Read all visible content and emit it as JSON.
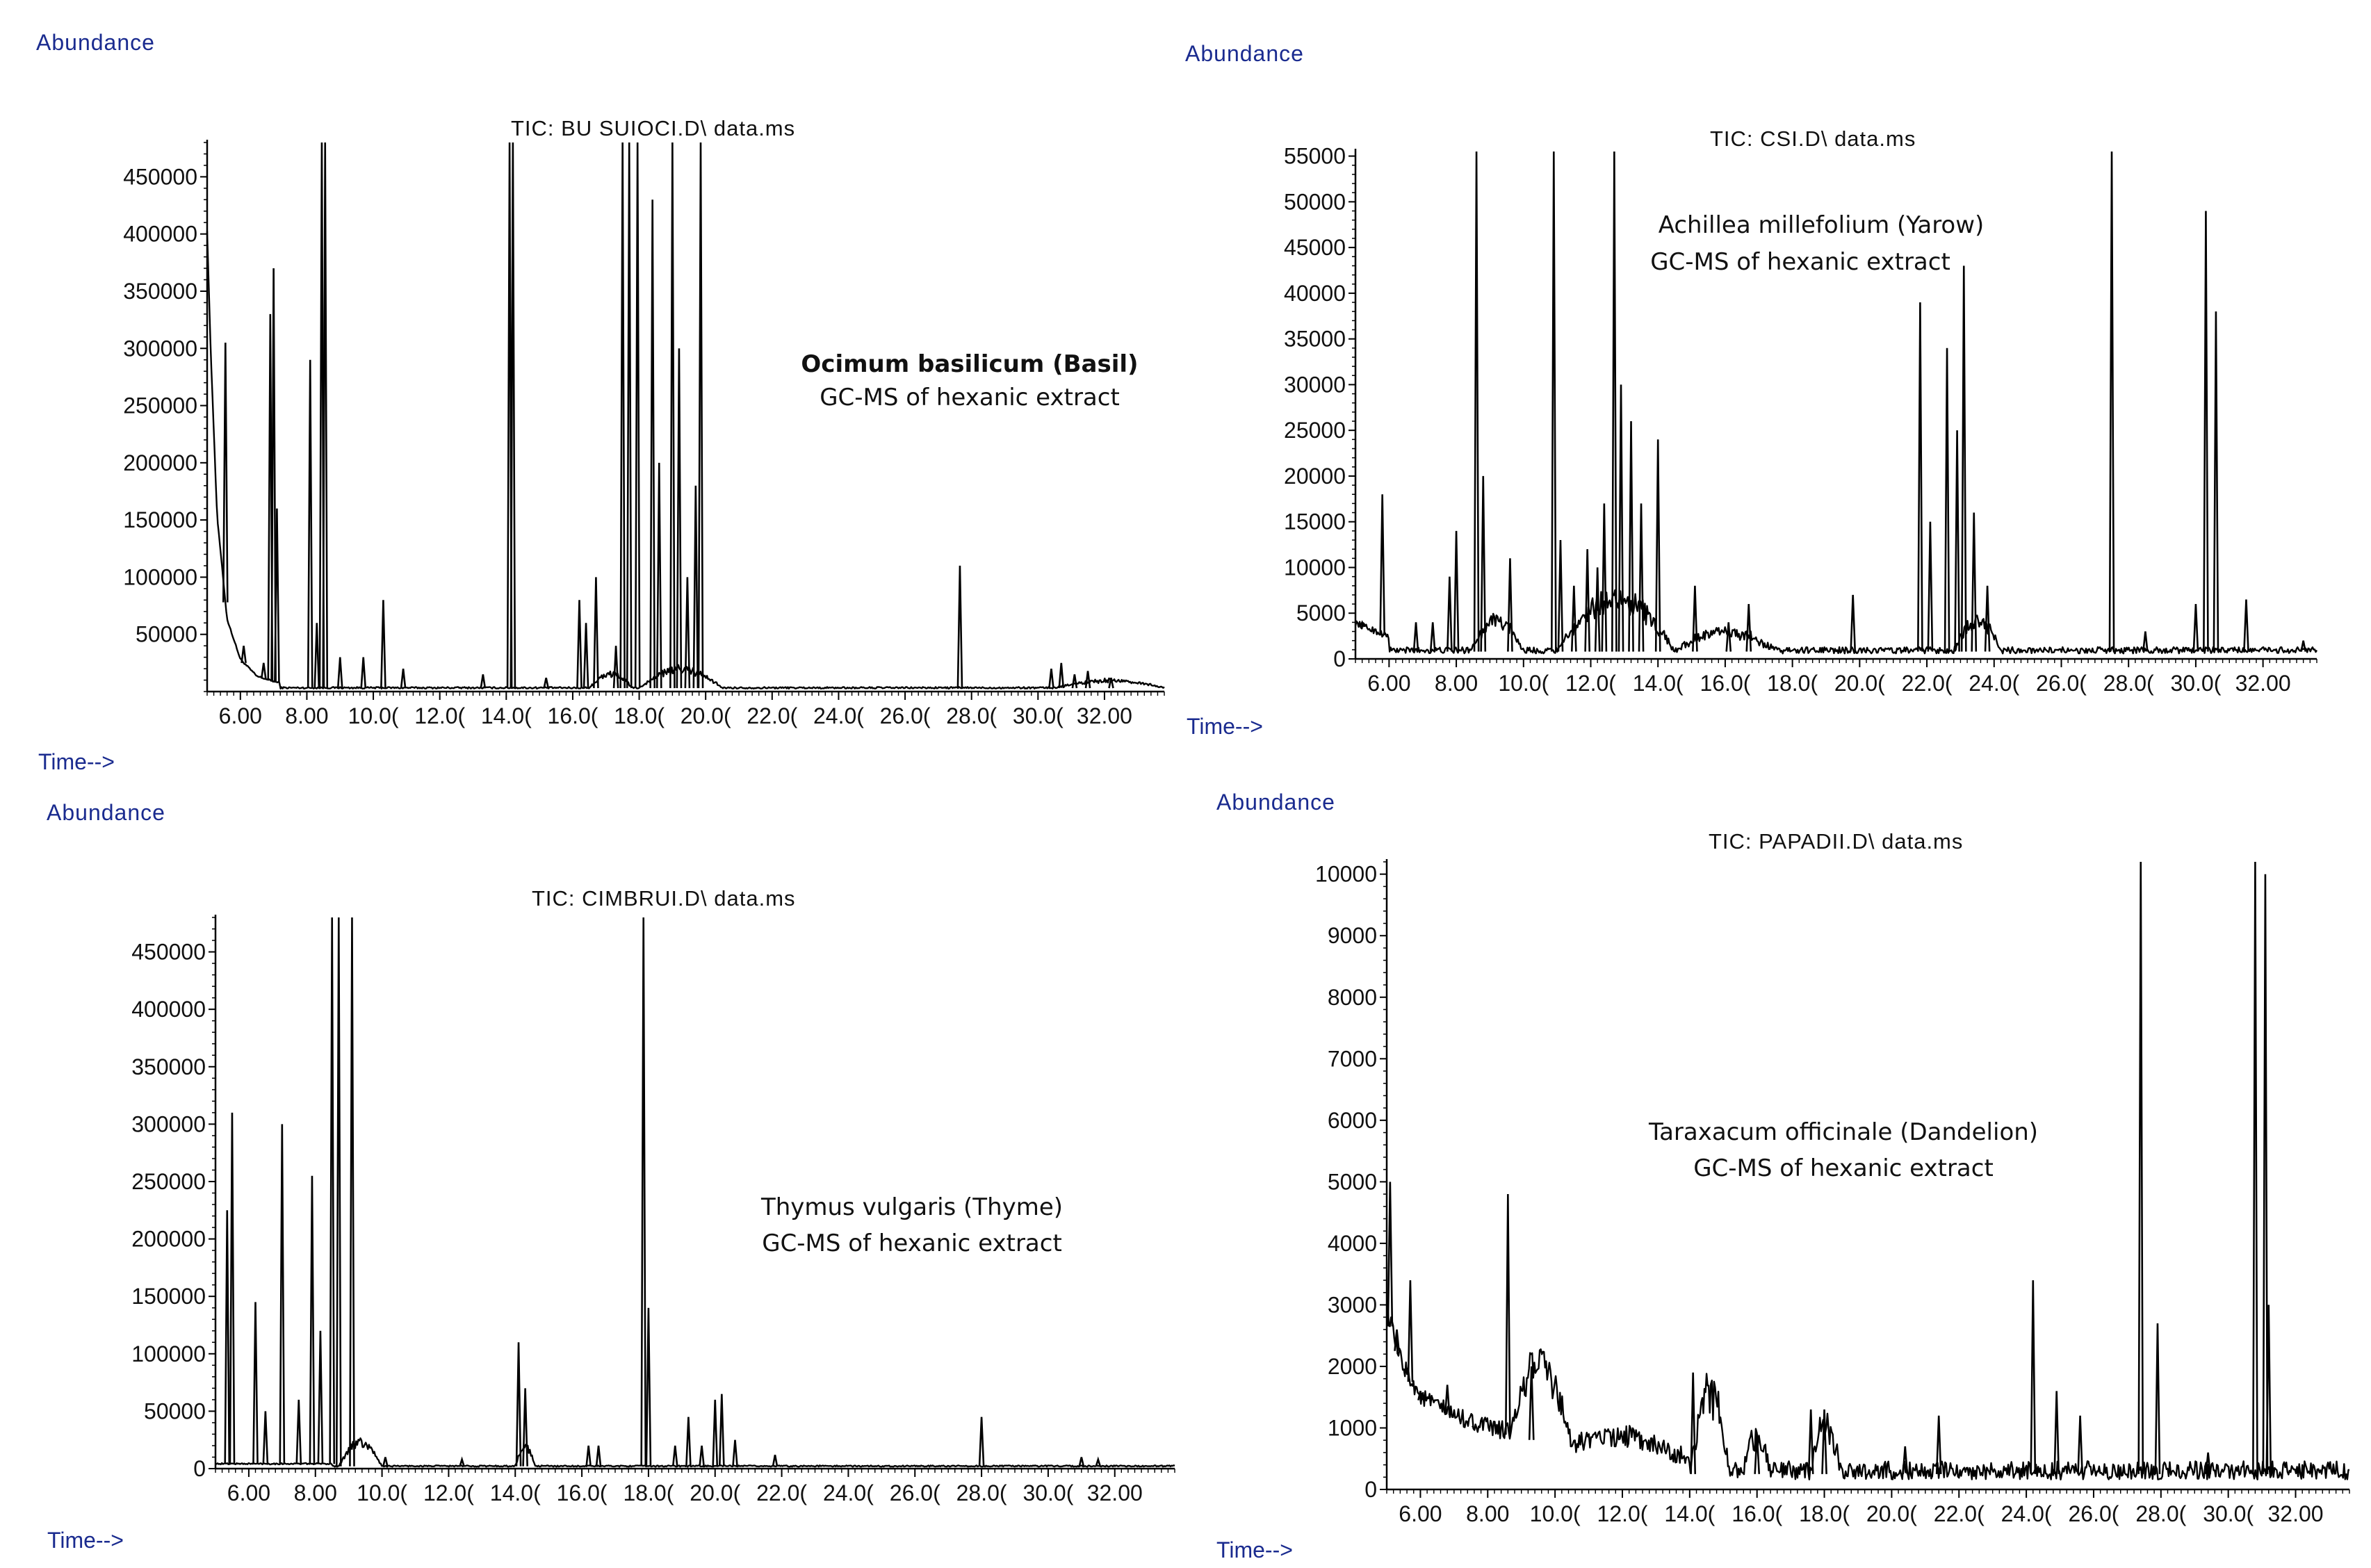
{
  "figure": {
    "panels": [
      {
        "id": "basil",
        "y_axis_label": "Abundance",
        "x_axis_label": "Time-->",
        "tic_label": "TIC: BU SUIOCI.D\\ data.ms",
        "annotation": [
          "Ocimum basilicum (Basil)",
          "GC-MS of hexanic extract"
        ]
      },
      {
        "id": "yarrow",
        "y_axis_label": "Abundance",
        "x_axis_label": "Time-->",
        "tic_label": "TIC: CSI.D\\ data.ms",
        "annotation": [
          "Achillea millefolium (Yarow)",
          "GC-MS of hexanic extract"
        ]
      },
      {
        "id": "thyme",
        "y_axis_label": "Abundance",
        "x_axis_label": "Time-->",
        "tic_label": "TIC: CIMBRUI.D\\ data.ms",
        "annotation": [
          "Thymus vulgaris (Thyme)",
          "GC-MS of hexanic extract"
        ]
      },
      {
        "id": "dandelion",
        "y_axis_label": "Abundance",
        "x_axis_label": "Time-->",
        "tic_label": "TIC: PAPADII.D\\ data.ms",
        "annotation": [
          "Taraxacum officinale (Dandelion)",
          "GC-MS of hexanic extract"
        ]
      }
    ]
  },
  "chart_data": [
    {
      "type": "line",
      "title": "TIC: BU SUIOCI.D\\ data.ms",
      "xlabel": "Time-->",
      "ylabel": "Abundance",
      "xlim": [
        5.0,
        33.8
      ],
      "ylim": [
        0,
        480000
      ],
      "y_ticks": [
        50000,
        100000,
        150000,
        200000,
        250000,
        300000,
        350000,
        400000,
        450000
      ],
      "x_ticks": [
        6,
        8,
        10,
        12,
        14,
        16,
        18,
        20,
        22,
        24,
        26,
        28,
        30,
        32
      ],
      "x_tick_labels": [
        "6.00",
        "8.00",
        "10.0(",
        "12.0(",
        "14.0(",
        "16.0(",
        "18.0(",
        "20.0(",
        "22.0(",
        "24.0(",
        "26.0(",
        "28.0(",
        "30.0(",
        "32.00"
      ],
      "baseline": 3000,
      "noise": 1500,
      "decay": [
        [
          5.0,
          400000
        ],
        [
          5.1,
          300000
        ],
        [
          5.3,
          150000
        ],
        [
          5.6,
          60000
        ],
        [
          6.0,
          25000
        ],
        [
          6.5,
          10000
        ],
        [
          7.2,
          4000
        ]
      ],
      "bumps": [
        [
          16.5,
          17.8,
          15000
        ],
        [
          18.0,
          20.5,
          20000
        ],
        [
          30.5,
          33.8,
          8000
        ]
      ],
      "peaks": [
        [
          5.55,
          305000
        ],
        [
          6.1,
          40000
        ],
        [
          6.7,
          25000
        ],
        [
          6.9,
          330000
        ],
        [
          7.0,
          370000
        ],
        [
          7.1,
          160000
        ],
        [
          8.1,
          290000
        ],
        [
          8.3,
          60000
        ],
        [
          8.45,
          480000
        ],
        [
          8.55,
          480000
        ],
        [
          9.0,
          30000
        ],
        [
          9.7,
          30000
        ],
        [
          10.3,
          80000
        ],
        [
          10.9,
          20000
        ],
        [
          13.3,
          15000
        ],
        [
          14.1,
          480000
        ],
        [
          14.2,
          480000
        ],
        [
          15.2,
          12000
        ],
        [
          16.2,
          80000
        ],
        [
          16.4,
          60000
        ],
        [
          16.7,
          100000
        ],
        [
          17.3,
          40000
        ],
        [
          17.5,
          480000
        ],
        [
          17.7,
          480000
        ],
        [
          17.95,
          480000
        ],
        [
          18.4,
          430000
        ],
        [
          18.6,
          200000
        ],
        [
          19.0,
          480000
        ],
        [
          19.2,
          300000
        ],
        [
          19.45,
          100000
        ],
        [
          19.7,
          180000
        ],
        [
          19.85,
          480000
        ],
        [
          27.65,
          110000
        ],
        [
          30.4,
          20000
        ],
        [
          30.7,
          25000
        ],
        [
          31.1,
          15000
        ],
        [
          31.5,
          18000
        ],
        [
          32.2,
          12000
        ]
      ]
    },
    {
      "type": "line",
      "title": "TIC: CSI.D\\ data.ms",
      "xlabel": "Time-->",
      "ylabel": "Abundance",
      "xlim": [
        5.0,
        33.6
      ],
      "ylim": [
        0,
        55500
      ],
      "y_ticks": [
        0,
        5000,
        10000,
        15000,
        20000,
        25000,
        30000,
        35000,
        40000,
        45000,
        50000,
        55000
      ],
      "x_ticks": [
        6,
        8,
        10,
        12,
        14,
        16,
        18,
        20,
        22,
        24,
        26,
        28,
        30,
        32
      ],
      "x_tick_labels": [
        "6.00",
        "8.00",
        "10.0(",
        "12.0(",
        "14.0(",
        "16.0(",
        "18.0(",
        "20.0(",
        "22.0(",
        "24.0(",
        "26.0(",
        "28.0(",
        "30.0(",
        "32.00"
      ],
      "baseline": 800,
      "noise": 700,
      "decay": [
        [
          5.0,
          3000
        ],
        [
          6.0,
          1500
        ]
      ],
      "bumps": [
        [
          8.4,
          10.0,
          4000
        ],
        [
          11.0,
          14.5,
          7000
        ],
        [
          14.5,
          17.5,
          2500
        ],
        [
          22.8,
          24.2,
          4000
        ]
      ],
      "peaks": [
        [
          5.2,
          4000
        ],
        [
          5.8,
          18000
        ],
        [
          6.8,
          4000
        ],
        [
          7.3,
          4000
        ],
        [
          7.8,
          9000
        ],
        [
          8.0,
          14000
        ],
        [
          8.6,
          55500
        ],
        [
          8.8,
          20000
        ],
        [
          9.6,
          11000
        ],
        [
          10.9,
          55500
        ],
        [
          11.1,
          13000
        ],
        [
          11.5,
          8000
        ],
        [
          11.9,
          12000
        ],
        [
          12.2,
          10000
        ],
        [
          12.4,
          17000
        ],
        [
          12.7,
          55500
        ],
        [
          12.9,
          30000
        ],
        [
          13.2,
          26000
        ],
        [
          13.5,
          17000
        ],
        [
          14.0,
          24000
        ],
        [
          15.1,
          8000
        ],
        [
          16.1,
          4000
        ],
        [
          16.7,
          6000
        ],
        [
          19.8,
          7000
        ],
        [
          21.8,
          39000
        ],
        [
          22.1,
          15000
        ],
        [
          22.6,
          34000
        ],
        [
          22.9,
          25000
        ],
        [
          23.1,
          43000
        ],
        [
          23.4,
          16000
        ],
        [
          23.8,
          8000
        ],
        [
          27.5,
          55500
        ],
        [
          28.5,
          3000
        ],
        [
          30.0,
          6000
        ],
        [
          30.3,
          49000
        ],
        [
          30.6,
          38000
        ],
        [
          31.5,
          6500
        ],
        [
          33.2,
          2000
        ]
      ]
    },
    {
      "type": "line",
      "title": "TIC: CIMBRUI.D\\ data.ms",
      "xlabel": "Time-->",
      "ylabel": "Abundance",
      "xlim": [
        5.0,
        33.8
      ],
      "ylim": [
        0,
        480000
      ],
      "y_ticks": [
        0,
        50000,
        100000,
        150000,
        200000,
        250000,
        300000,
        350000,
        400000,
        450000
      ],
      "x_ticks": [
        6,
        8,
        10,
        12,
        14,
        16,
        18,
        20,
        22,
        24,
        26,
        28,
        30,
        32
      ],
      "x_tick_labels": [
        "6.00",
        "8.00",
        "10.0(",
        "12.0(",
        "14.0(",
        "16.0(",
        "18.0(",
        "20.0(",
        "22.0(",
        "24.0(",
        "26.0(",
        "28.0(",
        "30.0(",
        "32.00"
      ],
      "baseline": 2000,
      "noise": 1200,
      "decay": [
        [
          8.5,
          2000
        ]
      ],
      "bumps": [
        [
          8.7,
          10.0,
          25000
        ],
        [
          14.0,
          14.6,
          20000
        ]
      ],
      "peaks": [
        [
          5.35,
          225000
        ],
        [
          5.5,
          310000
        ],
        [
          6.2,
          145000
        ],
        [
          6.5,
          50000
        ],
        [
          7.0,
          300000
        ],
        [
          7.5,
          60000
        ],
        [
          7.9,
          255000
        ],
        [
          8.15,
          120000
        ],
        [
          8.5,
          480000
        ],
        [
          8.7,
          480000
        ],
        [
          9.1,
          480000
        ],
        [
          10.1,
          10000
        ],
        [
          12.4,
          8000
        ],
        [
          14.1,
          110000
        ],
        [
          14.3,
          70000
        ],
        [
          16.2,
          20000
        ],
        [
          16.5,
          20000
        ],
        [
          17.85,
          480000
        ],
        [
          18.0,
          140000
        ],
        [
          18.8,
          20000
        ],
        [
          19.2,
          45000
        ],
        [
          19.6,
          20000
        ],
        [
          20.0,
          60000
        ],
        [
          20.2,
          65000
        ],
        [
          20.6,
          25000
        ],
        [
          21.8,
          12000
        ],
        [
          28.0,
          45000
        ],
        [
          31.0,
          10000
        ],
        [
          31.5,
          8000
        ]
      ]
    },
    {
      "type": "line",
      "title": "TIC: PAPADII.D\\ data.ms",
      "xlabel": "Time-->",
      "ylabel": "Abundance",
      "xlim": [
        5.0,
        33.6
      ],
      "ylim": [
        0,
        10200
      ],
      "y_ticks": [
        0,
        1000,
        2000,
        3000,
        4000,
        5000,
        6000,
        7000,
        8000,
        9000,
        10000
      ],
      "x_ticks": [
        6,
        8,
        10,
        12,
        14,
        16,
        18,
        20,
        22,
        24,
        26,
        28,
        30,
        32
      ],
      "x_tick_labels": [
        "6.00",
        "8.00",
        "10.0(",
        "12.0(",
        "14.0(",
        "16.0(",
        "18.0(",
        "20.0(",
        "22.0(",
        "24.0(",
        "26.0(",
        "28.0(",
        "30.0(",
        "32.00"
      ],
      "baseline": 250,
      "noise": 300,
      "decay": [
        [
          5.0,
          2600
        ],
        [
          5.4,
          1800
        ],
        [
          6.0,
          1200
        ],
        [
          7.0,
          900
        ],
        [
          8.0,
          700
        ],
        [
          9.0,
          600
        ],
        [
          10.0,
          450
        ],
        [
          12.0,
          300
        ],
        [
          14.0,
          250
        ]
      ],
      "bumps": [
        [
          8.7,
          10.5,
          1500
        ],
        [
          14.0,
          15.2,
          1500
        ],
        [
          15.6,
          16.4,
          700
        ],
        [
          17.6,
          18.5,
          900
        ],
        [
          10.5,
          13.5,
          300
        ]
      ],
      "peaks": [
        [
          5.1,
          5000
        ],
        [
          5.3,
          2600
        ],
        [
          5.7,
          3400
        ],
        [
          6.0,
          1600
        ],
        [
          6.8,
          1700
        ],
        [
          7.6,
          1000
        ],
        [
          8.6,
          4800
        ],
        [
          9.3,
          2000
        ],
        [
          14.1,
          1900
        ],
        [
          16.0,
          900
        ],
        [
          17.6,
          1300
        ],
        [
          18.0,
          1300
        ],
        [
          20.4,
          700
        ],
        [
          21.4,
          1200
        ],
        [
          24.2,
          3400
        ],
        [
          24.9,
          1600
        ],
        [
          25.6,
          1200
        ],
        [
          27.4,
          10200
        ],
        [
          27.9,
          2700
        ],
        [
          29.4,
          600
        ],
        [
          30.8,
          10200
        ],
        [
          31.1,
          10000
        ],
        [
          31.2,
          3000
        ]
      ]
    }
  ]
}
